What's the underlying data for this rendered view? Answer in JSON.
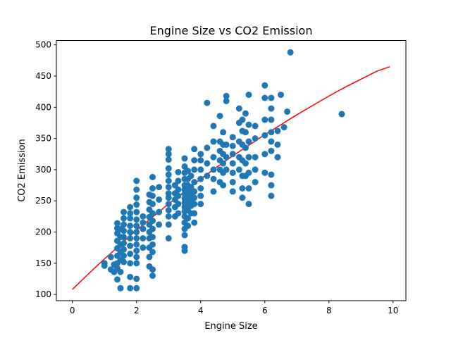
{
  "chart_data": {
    "type": "scatter",
    "title": "Engine Size vs CO2 Emission",
    "xlabel": "Engine Size",
    "ylabel": "CO2 Emission",
    "xlim": [
      -0.5,
      10.4
    ],
    "ylim": [
      90,
      507
    ],
    "xticks": [
      0,
      2,
      4,
      6,
      8,
      10
    ],
    "yticks": [
      100,
      150,
      200,
      250,
      300,
      350,
      400,
      450,
      500
    ],
    "grid": false,
    "legend": "none",
    "colors": {
      "points": "#1f77b4",
      "fit": "#ff0000"
    },
    "series": [
      {
        "kind": "scatter",
        "points": [
          [
            1.0,
            150
          ],
          [
            1.0,
            146
          ],
          [
            1.2,
            160
          ],
          [
            1.2,
            140
          ],
          [
            1.3,
            148
          ],
          [
            1.3,
            136
          ],
          [
            1.4,
            124
          ],
          [
            1.4,
            142
          ],
          [
            1.4,
            150
          ],
          [
            1.4,
            162
          ],
          [
            1.4,
            174
          ],
          [
            1.4,
            186
          ],
          [
            1.4,
            198
          ],
          [
            1.4,
            206
          ],
          [
            1.4,
            214
          ],
          [
            1.5,
            110
          ],
          [
            1.5,
            136
          ],
          [
            1.5,
            155
          ],
          [
            1.5,
            168
          ],
          [
            1.5,
            180
          ],
          [
            1.5,
            192
          ],
          [
            1.5,
            205
          ],
          [
            1.6,
            152
          ],
          [
            1.6,
            162
          ],
          [
            1.6,
            172
          ],
          [
            1.6,
            182
          ],
          [
            1.6,
            192
          ],
          [
            1.6,
            202
          ],
          [
            1.6,
            212
          ],
          [
            1.6,
            222
          ],
          [
            1.6,
            232
          ],
          [
            1.8,
            110
          ],
          [
            1.8,
            128
          ],
          [
            1.8,
            150
          ],
          [
            1.8,
            165
          ],
          [
            1.8,
            178
          ],
          [
            1.8,
            190
          ],
          [
            1.8,
            200
          ],
          [
            1.8,
            210
          ],
          [
            1.8,
            222
          ],
          [
            1.8,
            230
          ],
          [
            1.8,
            240
          ],
          [
            2.0,
            110
          ],
          [
            2.0,
            125
          ],
          [
            2.0,
            150
          ],
          [
            2.0,
            160
          ],
          [
            2.0,
            170
          ],
          [
            2.0,
            180
          ],
          [
            2.0,
            190
          ],
          [
            2.0,
            200
          ],
          [
            2.0,
            210
          ],
          [
            2.0,
            220
          ],
          [
            2.0,
            232
          ],
          [
            2.0,
            244
          ],
          [
            2.0,
            255
          ],
          [
            2.0,
            268
          ],
          [
            2.0,
            282
          ],
          [
            2.2,
            175
          ],
          [
            2.2,
            190
          ],
          [
            2.2,
            205
          ],
          [
            2.2,
            215
          ],
          [
            2.2,
            225
          ],
          [
            2.4,
            145
          ],
          [
            2.4,
            160
          ],
          [
            2.4,
            175
          ],
          [
            2.4,
            190
          ],
          [
            2.4,
            200
          ],
          [
            2.4,
            212
          ],
          [
            2.4,
            224
          ],
          [
            2.4,
            236
          ],
          [
            2.4,
            248
          ],
          [
            2.4,
            260
          ],
          [
            2.5,
            130
          ],
          [
            2.5,
            140
          ],
          [
            2.5,
            168
          ],
          [
            2.5,
            180
          ],
          [
            2.5,
            192
          ],
          [
            2.5,
            205
          ],
          [
            2.5,
            218
          ],
          [
            2.5,
            230
          ],
          [
            2.5,
            245
          ],
          [
            2.5,
            258
          ],
          [
            2.5,
            270
          ],
          [
            2.5,
            288
          ],
          [
            2.7,
            212
          ],
          [
            2.7,
            232
          ],
          [
            2.7,
            252
          ],
          [
            2.7,
            272
          ],
          [
            3.0,
            190
          ],
          [
            3.0,
            212
          ],
          [
            3.0,
            225
          ],
          [
            3.0,
            235
          ],
          [
            3.0,
            245
          ],
          [
            3.0,
            255
          ],
          [
            3.0,
            262
          ],
          [
            3.0,
            272
          ],
          [
            3.0,
            282
          ],
          [
            3.0,
            292
          ],
          [
            3.0,
            302
          ],
          [
            3.0,
            316
          ],
          [
            3.0,
            325
          ],
          [
            3.0,
            333
          ],
          [
            3.2,
            225
          ],
          [
            3.2,
            240
          ],
          [
            3.2,
            252
          ],
          [
            3.2,
            262
          ],
          [
            3.2,
            275
          ],
          [
            3.3,
            230
          ],
          [
            3.3,
            245
          ],
          [
            3.3,
            258
          ],
          [
            3.3,
            268
          ],
          [
            3.3,
            282
          ],
          [
            3.3,
            296
          ],
          [
            3.5,
            170
          ],
          [
            3.5,
            176
          ],
          [
            3.5,
            195
          ],
          [
            3.5,
            205
          ],
          [
            3.5,
            215
          ],
          [
            3.5,
            225
          ],
          [
            3.5,
            233
          ],
          [
            3.5,
            240
          ],
          [
            3.5,
            247
          ],
          [
            3.5,
            254
          ],
          [
            3.5,
            261
          ],
          [
            3.5,
            268
          ],
          [
            3.5,
            275
          ],
          [
            3.5,
            285
          ],
          [
            3.5,
            295
          ],
          [
            3.5,
            305
          ],
          [
            3.5,
            318
          ],
          [
            3.6,
            210
          ],
          [
            3.6,
            222
          ],
          [
            3.6,
            235
          ],
          [
            3.6,
            245
          ],
          [
            3.6,
            255
          ],
          [
            3.6,
            265
          ],
          [
            3.6,
            275
          ],
          [
            3.6,
            285
          ],
          [
            3.6,
            298
          ],
          [
            3.7,
            230
          ],
          [
            3.7,
            242
          ],
          [
            3.7,
            252
          ],
          [
            3.7,
            262
          ],
          [
            3.7,
            272
          ],
          [
            3.7,
            290
          ],
          [
            3.8,
            215
          ],
          [
            3.8,
            230
          ],
          [
            3.8,
            245
          ],
          [
            3.8,
            255
          ],
          [
            3.8,
            265
          ],
          [
            3.8,
            280
          ],
          [
            3.8,
            300
          ],
          [
            3.8,
            315
          ],
          [
            3.8,
            333
          ],
          [
            4.0,
            245
          ],
          [
            4.0,
            258
          ],
          [
            4.0,
            270
          ],
          [
            4.0,
            285
          ],
          [
            4.0,
            300
          ],
          [
            4.0,
            315
          ],
          [
            4.0,
            325
          ],
          [
            4.2,
            290
          ],
          [
            4.2,
            310
          ],
          [
            4.2,
            335
          ],
          [
            4.2,
            407
          ],
          [
            4.4,
            265
          ],
          [
            4.4,
            285
          ],
          [
            4.4,
            300
          ],
          [
            4.4,
            320
          ],
          [
            4.4,
            345
          ],
          [
            4.4,
            370
          ],
          [
            4.6,
            280
          ],
          [
            4.6,
            300
          ],
          [
            4.6,
            315
          ],
          [
            4.6,
            330
          ],
          [
            4.6,
            345
          ],
          [
            4.6,
            386
          ],
          [
            4.7,
            275
          ],
          [
            4.7,
            295
          ],
          [
            4.7,
            310
          ],
          [
            4.7,
            325
          ],
          [
            4.7,
            340
          ],
          [
            4.7,
            360
          ],
          [
            4.8,
            300
          ],
          [
            4.8,
            320
          ],
          [
            4.8,
            340
          ],
          [
            4.8,
            410
          ],
          [
            4.8,
            418
          ],
          [
            5.0,
            265
          ],
          [
            5.0,
            280
          ],
          [
            5.0,
            295
          ],
          [
            5.0,
            310
          ],
          [
            5.0,
            325
          ],
          [
            5.0,
            338
          ],
          [
            5.0,
            352
          ],
          [
            5.2,
            300
          ],
          [
            5.2,
            320
          ],
          [
            5.2,
            345
          ],
          [
            5.2,
            375
          ],
          [
            5.2,
            398
          ],
          [
            5.3,
            255
          ],
          [
            5.3,
            270
          ],
          [
            5.3,
            290
          ],
          [
            5.3,
            315
          ],
          [
            5.3,
            340
          ],
          [
            5.3,
            362
          ],
          [
            5.3,
            380
          ],
          [
            5.4,
            290
          ],
          [
            5.4,
            310
          ],
          [
            5.4,
            335
          ],
          [
            5.4,
            360
          ],
          [
            5.4,
            390
          ],
          [
            5.5,
            245
          ],
          [
            5.5,
            270
          ],
          [
            5.5,
            295
          ],
          [
            5.5,
            320
          ],
          [
            5.5,
            345
          ],
          [
            5.5,
            372
          ],
          [
            5.5,
            420
          ],
          [
            5.7,
            280
          ],
          [
            5.7,
            300
          ],
          [
            5.7,
            320
          ],
          [
            5.7,
            350
          ],
          [
            5.7,
            370
          ],
          [
            6.0,
            295
          ],
          [
            6.0,
            325
          ],
          [
            6.0,
            355
          ],
          [
            6.0,
            380
          ],
          [
            6.0,
            415
          ],
          [
            6.0,
            435
          ],
          [
            6.2,
            258
          ],
          [
            6.2,
            275
          ],
          [
            6.2,
            292
          ],
          [
            6.2,
            330
          ],
          [
            6.2,
            345
          ],
          [
            6.2,
            360
          ],
          [
            6.2,
            380
          ],
          [
            6.2,
            398
          ],
          [
            6.2,
            415
          ],
          [
            6.4,
            320
          ],
          [
            6.4,
            340
          ],
          [
            6.4,
            362
          ],
          [
            6.5,
            420
          ],
          [
            6.6,
            368
          ],
          [
            6.7,
            393
          ],
          [
            6.8,
            488
          ],
          [
            8.4,
            389
          ]
        ]
      },
      {
        "kind": "fit-line",
        "x": [
          0,
          0.5,
          1,
          1.5,
          2,
          2.5,
          3,
          3.5,
          4,
          4.5,
          5,
          5.5,
          6,
          6.5,
          7,
          7.5,
          8,
          8.5,
          9,
          9.5,
          9.9
        ],
        "y": [
          108,
          133,
          157,
          180,
          203,
          224,
          245,
          265,
          285,
          304,
          322,
          339,
          356,
          372,
          388,
          403,
          418,
          432,
          445,
          458,
          465
        ]
      }
    ]
  }
}
